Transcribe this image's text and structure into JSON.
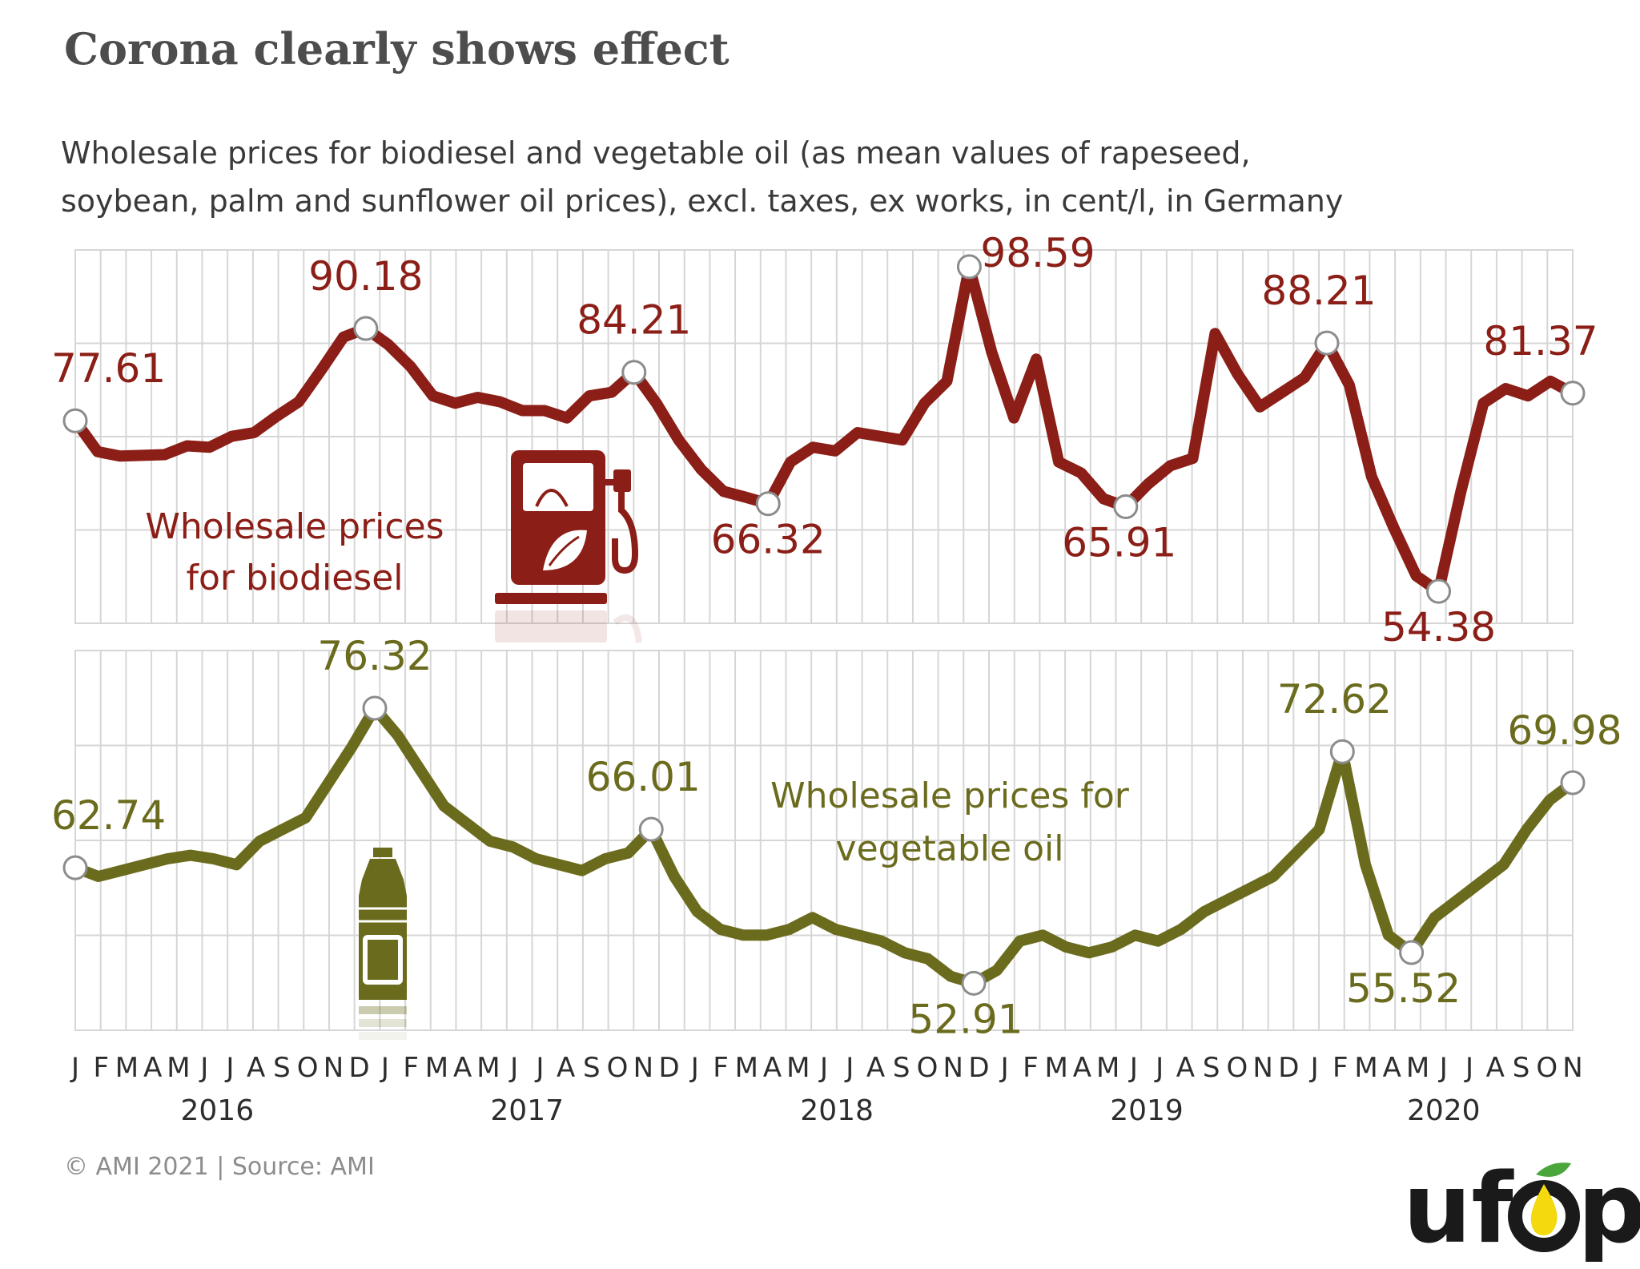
{
  "title": "Corona clearly shows effect",
  "subtitle_line1": "Wholesale prices for biodiesel and vegetable oil (as mean values of rapeseed,",
  "subtitle_line2": "soybean, palm and sunflower oil prices), excl. taxes, ex works, in cent/l, in Germany",
  "source": "© AMI 2021 | Source: AMI",
  "logo": {
    "text_left": "uf",
    "text_right": "p",
    "icon": "droplet-leaf-icon"
  },
  "colors": {
    "biodiesel": "#8b1e16",
    "vegetable_oil": "#6b6b1e",
    "grid": "#d6d6d6",
    "logo_yellow": "#f3d90d",
    "logo_green": "#4aa63a"
  },
  "icons": {
    "biodiesel": "fuel-pump-leaf-icon",
    "vegetable_oil": "oil-bottle-icon"
  },
  "chart_data": [
    {
      "type": "line",
      "name": "biodiesel",
      "series": [
        {
          "name": "Wholesale prices for biodiesel"
        }
      ],
      "label_lines": [
        "Wholesale prices",
        "for biodiesel"
      ],
      "ylim": [
        52,
        100
      ],
      "grid": true,
      "points": [
        [
          0,
          77.61
        ],
        [
          1,
          73.4
        ],
        [
          2,
          72.8
        ],
        [
          3,
          72.9
        ],
        [
          4,
          73.0
        ],
        [
          5,
          74.2
        ],
        [
          6,
          74.0
        ],
        [
          7,
          75.5
        ],
        [
          8,
          76.0
        ],
        [
          9,
          78.2
        ],
        [
          10,
          80.2
        ],
        [
          11,
          84.5
        ],
        [
          12,
          89.0
        ],
        [
          13,
          90.18
        ],
        [
          14,
          88.0
        ],
        [
          15,
          85.0
        ],
        [
          16,
          81.0
        ],
        [
          17,
          80.0
        ],
        [
          18,
          80.8
        ],
        [
          19,
          80.2
        ],
        [
          20,
          79.0
        ],
        [
          21,
          79.0
        ],
        [
          22,
          78.0
        ],
        [
          23,
          81.0
        ],
        [
          24,
          81.5
        ],
        [
          25,
          84.21
        ],
        [
          26,
          80.0
        ],
        [
          27,
          75.0
        ],
        [
          28,
          71.0
        ],
        [
          29,
          68.0
        ],
        [
          30,
          67.2
        ],
        [
          31,
          66.32
        ],
        [
          32,
          72.0
        ],
        [
          33,
          74.0
        ],
        [
          34,
          73.5
        ],
        [
          35,
          76.0
        ],
        [
          36,
          75.5
        ],
        [
          37,
          75.0
        ],
        [
          38,
          80.0
        ],
        [
          39,
          83.0
        ],
        [
          40,
          98.59
        ],
        [
          41,
          87.0
        ],
        [
          42,
          78.0
        ],
        [
          43,
          86.0
        ],
        [
          44,
          72.0
        ],
        [
          45,
          70.5
        ],
        [
          46,
          67.0
        ],
        [
          47,
          65.91
        ],
        [
          48,
          69.0
        ],
        [
          49,
          71.5
        ],
        [
          50,
          72.5
        ],
        [
          51,
          89.5
        ],
        [
          52,
          84.0
        ],
        [
          53,
          79.5
        ],
        [
          54,
          81.5
        ],
        [
          55,
          83.5
        ],
        [
          56,
          88.21
        ],
        [
          57,
          82.5
        ],
        [
          58,
          70.0
        ],
        [
          59,
          63.0
        ],
        [
          60,
          56.5
        ],
        [
          61,
          54.38
        ],
        [
          62,
          68.0
        ],
        [
          63,
          80.0
        ],
        [
          64,
          82.0
        ],
        [
          65,
          81.0
        ],
        [
          66,
          83.0
        ],
        [
          67,
          81.37
        ]
      ],
      "markers": [
        {
          "i": 0,
          "v": 77.61,
          "label": "77.61"
        },
        {
          "i": 13,
          "v": 90.18,
          "label": "90.18"
        },
        {
          "i": 25,
          "v": 84.21,
          "label": "84.21"
        },
        {
          "i": 31,
          "v": 66.32,
          "label": "66.32"
        },
        {
          "i": 40,
          "v": 98.59,
          "label": "98.59"
        },
        {
          "i": 47,
          "v": 65.91,
          "label": "65.91"
        },
        {
          "i": 56,
          "v": 88.21,
          "label": "88.21"
        },
        {
          "i": 61,
          "v": 54.38,
          "label": "54.38"
        },
        {
          "i": 67,
          "v": 81.37,
          "label": "81.37"
        }
      ]
    },
    {
      "type": "line",
      "name": "vegetable_oil",
      "series": [
        {
          "name": "Wholesale prices for vegetable oil"
        }
      ],
      "label_lines": [
        "Wholesale prices for",
        "vegetable oil"
      ],
      "ylim": [
        50,
        80
      ],
      "grid": true,
      "points": [
        [
          0,
          62.74
        ],
        [
          1,
          62.0
        ],
        [
          2,
          62.5
        ],
        [
          3,
          63.0
        ],
        [
          4,
          63.5
        ],
        [
          5,
          63.8
        ],
        [
          6,
          63.5
        ],
        [
          7,
          63.0
        ],
        [
          8,
          65.0
        ],
        [
          9,
          66.0
        ],
        [
          10,
          67.0
        ],
        [
          11,
          70.0
        ],
        [
          12,
          73.0
        ],
        [
          13,
          76.32
        ],
        [
          14,
          74.0
        ],
        [
          15,
          71.0
        ],
        [
          16,
          68.0
        ],
        [
          17,
          66.5
        ],
        [
          18,
          65.0
        ],
        [
          19,
          64.5
        ],
        [
          20,
          63.5
        ],
        [
          21,
          63.0
        ],
        [
          22,
          62.5
        ],
        [
          23,
          63.5
        ],
        [
          24,
          64.0
        ],
        [
          25,
          66.01
        ],
        [
          26,
          62.0
        ],
        [
          27,
          59.0
        ],
        [
          28,
          57.5
        ],
        [
          29,
          57.0
        ],
        [
          30,
          57.0
        ],
        [
          31,
          57.5
        ],
        [
          32,
          58.5
        ],
        [
          33,
          57.5
        ],
        [
          34,
          57.0
        ],
        [
          35,
          56.5
        ],
        [
          36,
          55.5
        ],
        [
          37,
          55.0
        ],
        [
          38,
          53.5
        ],
        [
          39,
          52.91
        ],
        [
          40,
          54.0
        ],
        [
          41,
          56.5
        ],
        [
          42,
          57.0
        ],
        [
          43,
          56.0
        ],
        [
          44,
          55.5
        ],
        [
          45,
          56.0
        ],
        [
          46,
          57.0
        ],
        [
          47,
          56.5
        ],
        [
          48,
          57.5
        ],
        [
          49,
          59.0
        ],
        [
          50,
          60.0
        ],
        [
          51,
          61.0
        ],
        [
          52,
          62.0
        ],
        [
          53,
          64.0
        ],
        [
          54,
          66.0
        ],
        [
          55,
          72.62
        ],
        [
          56,
          63.0
        ],
        [
          57,
          57.0
        ],
        [
          58,
          55.52
        ],
        [
          59,
          58.5
        ],
        [
          60,
          60.0
        ],
        [
          61,
          61.5
        ],
        [
          62,
          63.0
        ],
        [
          63,
          66.0
        ],
        [
          64,
          68.5
        ],
        [
          65,
          69.98
        ]
      ],
      "markers": [
        {
          "i": 0,
          "v": 62.74,
          "label": "62.74"
        },
        {
          "i": 13,
          "v": 76.32,
          "label": "76.32"
        },
        {
          "i": 25,
          "v": 66.01,
          "label": "66.01"
        },
        {
          "i": 39,
          "v": 52.91,
          "label": "52.91"
        },
        {
          "i": 55,
          "v": 72.62,
          "label": "72.62"
        },
        {
          "i": 58,
          "v": 55.52,
          "label": "55.52"
        },
        {
          "i": 65,
          "v": 69.98,
          "label": "69.98"
        }
      ]
    }
  ],
  "x_axis": {
    "months_full": [
      "J",
      "F",
      "M",
      "A",
      "M",
      "J",
      "J",
      "A",
      "S",
      "O",
      "N",
      "D"
    ],
    "months_last": [
      "J",
      "F",
      "M",
      "A",
      "M",
      "J",
      "J",
      "A",
      "S",
      "O",
      "N"
    ],
    "years": [
      "2016",
      "2017",
      "2018",
      "2019",
      "2020"
    ]
  }
}
